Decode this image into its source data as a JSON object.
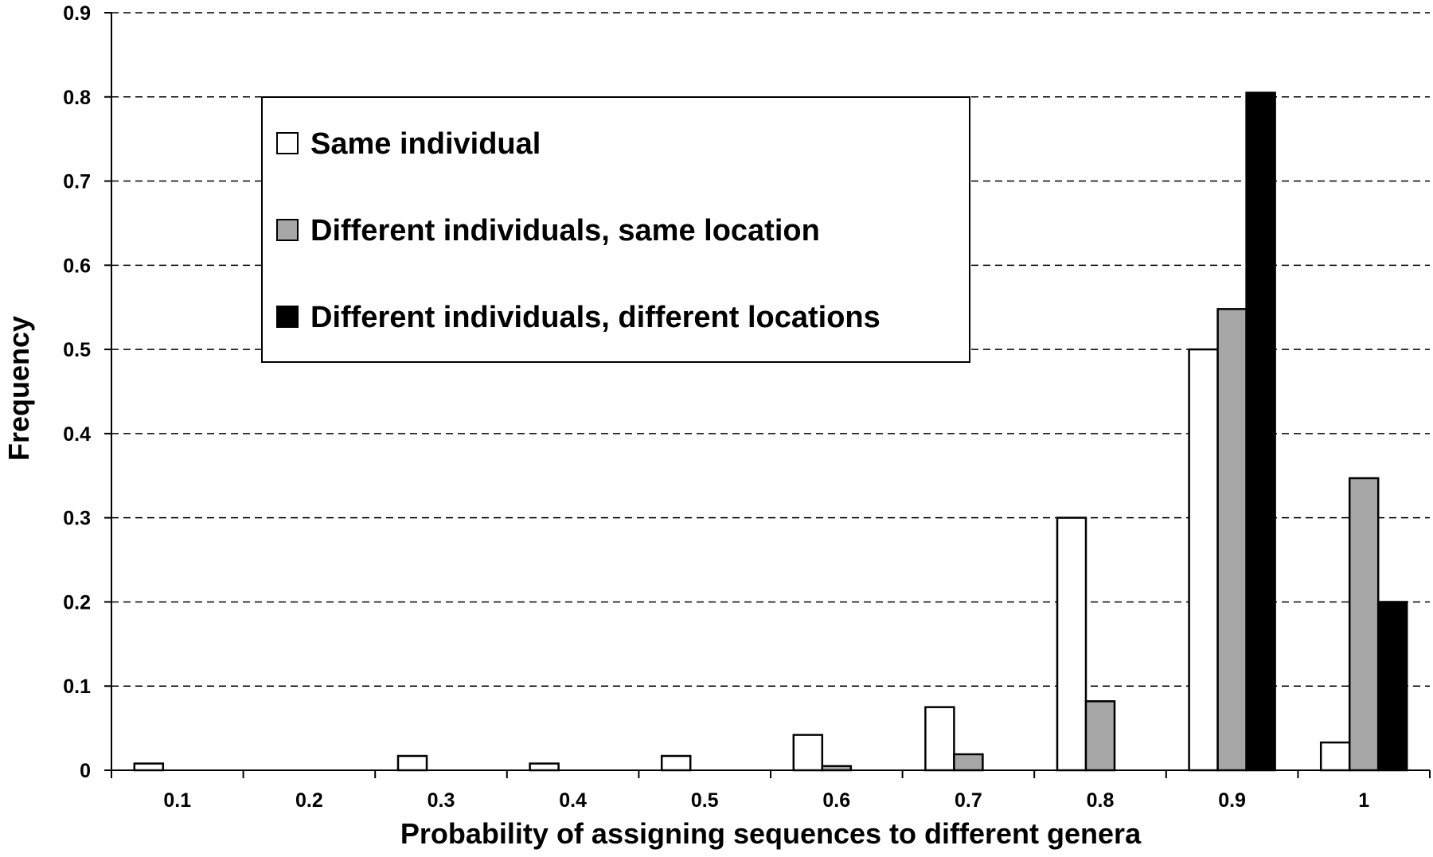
{
  "chart_data": {
    "type": "bar",
    "title": "",
    "xlabel": "Probability of assigning sequences to different genera",
    "ylabel": "Frequency",
    "categories": [
      "0.1",
      "0.2",
      "0.3",
      "0.4",
      "0.5",
      "0.6",
      "0.7",
      "0.8",
      "0.9",
      "1"
    ],
    "yticks": [
      "0",
      "0.1",
      "0.2",
      "0.3",
      "0.4",
      "0.5",
      "0.6",
      "0.7",
      "0.8",
      "0.9"
    ],
    "ylim": [
      0,
      0.9
    ],
    "grid": "horizontal-dashed",
    "legend_position": "upper-left",
    "series": [
      {
        "name": "Same individual",
        "color": "#ffffff",
        "values": [
          0.008,
          0,
          0.017,
          0.008,
          0.017,
          0.042,
          0.075,
          0.3,
          0.5,
          0.033
        ]
      },
      {
        "name": "Different individuals, same location",
        "color": "#a6a6a6",
        "values": [
          0,
          0,
          0,
          0,
          0,
          0.005,
          0.019,
          0.082,
          0.548,
          0.347
        ]
      },
      {
        "name": "Different individuals, different locations",
        "color": "#000000",
        "values": [
          0,
          0,
          0,
          0,
          0,
          0,
          0,
          0,
          0.805,
          0.2
        ]
      }
    ]
  }
}
